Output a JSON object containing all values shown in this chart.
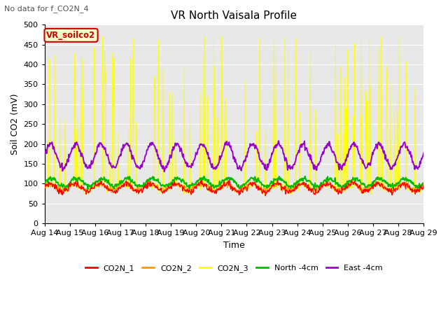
{
  "title": "VR North Vaisala Profile",
  "subtitle": "No data for f_CO2N_4",
  "xlabel": "Time",
  "ylabel": "Soil CO2 (mV)",
  "ylim": [
    0,
    500
  ],
  "background_color": "#ffffff",
  "plot_bg_color": "#e8e8e8",
  "grid_color": "#ffffff",
  "watermark_text": "VR_soilco2",
  "watermark_color": "#cc0000",
  "watermark_bg": "#ffffcc",
  "xtick_labels": [
    "Aug 14",
    "Aug 15",
    "Aug 16",
    "Aug 17",
    "Aug 18",
    "Aug 19",
    "Aug 20",
    "Aug 21",
    "Aug 22",
    "Aug 23",
    "Aug 24",
    "Aug 25",
    "Aug 26",
    "Aug 27",
    "Aug 28",
    "Aug 29"
  ],
  "ytick_vals": [
    0,
    50,
    100,
    150,
    200,
    250,
    300,
    350,
    400,
    450,
    500
  ],
  "color_co2n1": "#ff0000",
  "color_co2n2": "#ff9900",
  "color_co2n3": "#ffff00",
  "color_north": "#00bb00",
  "color_east": "#9900cc",
  "n_days": 15,
  "pts_per_day": 48
}
